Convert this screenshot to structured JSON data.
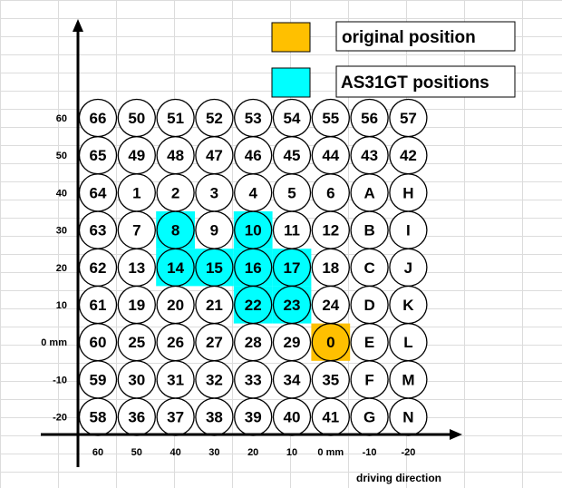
{
  "legend": {
    "original_label": "original  position",
    "original_color": "#ffc000",
    "as31gt_label": "AS31GT positions",
    "as31gt_color": "#00ffff"
  },
  "axes": {
    "x_title": "driving direction",
    "x_ticks": [
      "60",
      "50",
      "40",
      "30",
      "20",
      "10",
      "0 mm",
      "-10",
      "-20"
    ],
    "y_ticks": [
      "60",
      "50",
      "40",
      "30",
      "20",
      "10",
      "0 mm",
      "-10",
      "-20"
    ]
  },
  "grid": {
    "rows": [
      [
        "66",
        "50",
        "51",
        "52",
        "53",
        "54",
        "55",
        "56",
        "57"
      ],
      [
        "65",
        "49",
        "48",
        "47",
        "46",
        "45",
        "44",
        "43",
        "42"
      ],
      [
        "64",
        "1",
        "2",
        "3",
        "4",
        "5",
        "6",
        "A",
        "H"
      ],
      [
        "63",
        "7",
        "8",
        "9",
        "10",
        "11",
        "12",
        "B",
        "I"
      ],
      [
        "62",
        "13",
        "14",
        "15",
        "16",
        "17",
        "18",
        "C",
        "J"
      ],
      [
        "61",
        "19",
        "20",
        "21",
        "22",
        "23",
        "24",
        "D",
        "K"
      ],
      [
        "60",
        "25",
        "26",
        "27",
        "28",
        "29",
        "0",
        "E",
        "L"
      ],
      [
        "59",
        "30",
        "31",
        "32",
        "33",
        "34",
        "35",
        "F",
        "M"
      ],
      [
        "58",
        "36",
        "37",
        "38",
        "39",
        "40",
        "41",
        "G",
        "N"
      ]
    ],
    "as31gt_positions": [
      "8",
      "10",
      "14",
      "15",
      "16",
      "17",
      "22",
      "23"
    ],
    "original_position": "0"
  }
}
